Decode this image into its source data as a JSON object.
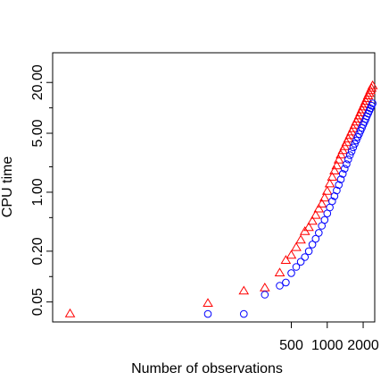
{
  "chart_data": {
    "type": "scatter",
    "title": "",
    "xlabel": "Number of observations",
    "ylabel": "CPU time",
    "x_scale": "log",
    "y_scale": "log",
    "xlim": [
      5.0,
      2500
    ],
    "ylim": [
      0.029,
      45
    ],
    "x_ticks": [
      {
        "value": 500,
        "label": "500"
      },
      {
        "value": 1000,
        "label": "1000"
      },
      {
        "value": 2000,
        "label": "2000"
      }
    ],
    "y_ticks": [
      {
        "value": 0.05,
        "label": "0.05"
      },
      {
        "value": 0.2,
        "label": "0.20"
      },
      {
        "value": 1,
        "label": "1.00"
      },
      {
        "value": 5,
        "label": "5.00"
      },
      {
        "value": 20,
        "label": "20.00"
      }
    ],
    "y_minor_ticks": [
      0.1,
      0.5,
      2,
      10
    ],
    "grid": false,
    "legend": "none",
    "series": [
      {
        "marker": "triangle",
        "color": "#ff0000",
        "points": [
          [
            7,
            0.036
          ],
          [
            100,
            0.048
          ],
          [
            200,
            0.067
          ],
          [
            300,
            0.073
          ],
          [
            400,
            0.11
          ],
          [
            450,
            0.155
          ],
          [
            500,
            0.178
          ],
          [
            550,
            0.22
          ],
          [
            600,
            0.27
          ],
          [
            650,
            0.34
          ],
          [
            700,
            0.38
          ],
          [
            750,
            0.45
          ],
          [
            800,
            0.53
          ],
          [
            850,
            0.63
          ],
          [
            900,
            0.72
          ],
          [
            950,
            0.85
          ],
          [
            1000,
            1.02
          ],
          [
            1050,
            1.25
          ],
          [
            1100,
            1.5
          ],
          [
            1150,
            1.78
          ],
          [
            1200,
            2.05
          ],
          [
            1250,
            2.4
          ],
          [
            1300,
            2.75
          ],
          [
            1350,
            3.1
          ],
          [
            1400,
            3.45
          ],
          [
            1450,
            3.85
          ],
          [
            1500,
            4.25
          ],
          [
            1550,
            4.7
          ],
          [
            1600,
            5.15
          ],
          [
            1650,
            5.65
          ],
          [
            1700,
            6.2
          ],
          [
            1750,
            6.75
          ],
          [
            1800,
            7.35
          ],
          [
            1850,
            8.0
          ],
          [
            1900,
            8.7
          ],
          [
            1950,
            9.45
          ],
          [
            2000,
            10.2
          ],
          [
            2050,
            11.0
          ],
          [
            2100,
            11.9
          ],
          [
            2150,
            12.8
          ],
          [
            2200,
            13.8
          ],
          [
            2250,
            14.8
          ],
          [
            2300,
            15.9
          ],
          [
            2350,
            17.0
          ],
          [
            2400,
            18.2
          ]
        ]
      },
      {
        "marker": "circle",
        "color": "#0000ff",
        "points": [
          [
            100,
            0.036
          ],
          [
            200,
            0.036
          ],
          [
            300,
            0.061
          ],
          [
            400,
            0.078
          ],
          [
            450,
            0.085
          ],
          [
            500,
            0.11
          ],
          [
            550,
            0.13
          ],
          [
            600,
            0.15
          ],
          [
            650,
            0.17
          ],
          [
            700,
            0.2
          ],
          [
            750,
            0.24
          ],
          [
            800,
            0.28
          ],
          [
            850,
            0.33
          ],
          [
            900,
            0.4
          ],
          [
            950,
            0.47
          ],
          [
            1000,
            0.56
          ],
          [
            1050,
            0.66
          ],
          [
            1100,
            0.78
          ],
          [
            1150,
            0.9
          ],
          [
            1200,
            1.05
          ],
          [
            1250,
            1.22
          ],
          [
            1300,
            1.42
          ],
          [
            1350,
            1.65
          ],
          [
            1400,
            1.9
          ],
          [
            1450,
            2.15
          ],
          [
            1500,
            2.45
          ],
          [
            1550,
            2.75
          ],
          [
            1600,
            3.05
          ],
          [
            1650,
            3.4
          ],
          [
            1700,
            3.75
          ],
          [
            1750,
            4.1
          ],
          [
            1800,
            4.5
          ],
          [
            1850,
            4.9
          ],
          [
            1900,
            5.35
          ],
          [
            1950,
            5.8
          ],
          [
            2000,
            6.3
          ],
          [
            2050,
            6.8
          ],
          [
            2100,
            7.35
          ],
          [
            2150,
            7.95
          ],
          [
            2200,
            8.55
          ],
          [
            2250,
            9.2
          ],
          [
            2300,
            9.85
          ],
          [
            2350,
            10.6
          ],
          [
            2400,
            11.3
          ]
        ]
      }
    ]
  }
}
